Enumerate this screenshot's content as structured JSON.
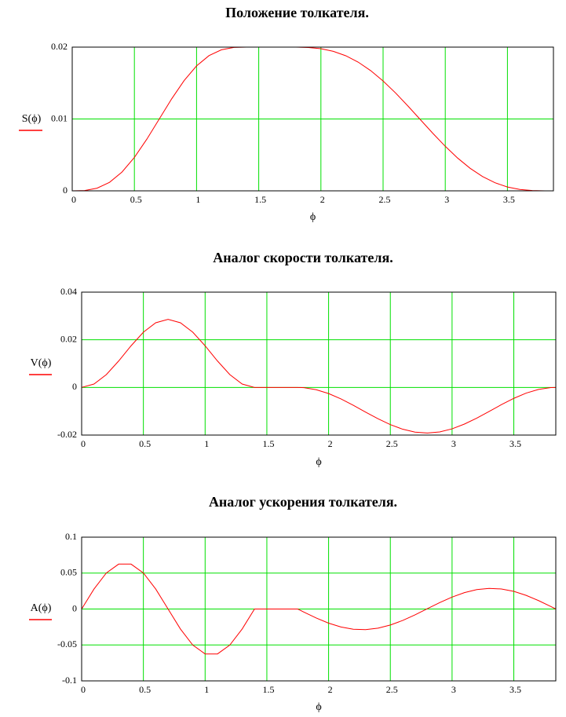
{
  "chart_data": [
    {
      "type": "line",
      "title": "Положение толкателя.",
      "x_label": "ϕ",
      "y_label": "S(ϕ)",
      "color": "#ff0000",
      "grid": true,
      "grid_color": "#00e000",
      "x": [
        0,
        0.1,
        0.2,
        0.3,
        0.4,
        0.5,
        0.6,
        0.7,
        0.8,
        0.9,
        1.0,
        1.1,
        1.2,
        1.3,
        1.4,
        1.5,
        1.6,
        1.7,
        1.75,
        1.8,
        1.9,
        2.0,
        2.1,
        2.2,
        2.3,
        2.4,
        2.5,
        2.6,
        2.7,
        2.8,
        2.9,
        3.0,
        3.1,
        3.2,
        3.3,
        3.4,
        3.5,
        3.6,
        3.7,
        3.8,
        3.84
      ],
      "values": [
        0,
        4.75e-05,
        0.000369,
        0.001182,
        0.002611,
        0.004654,
        0.00719,
        0.01,
        0.01281,
        0.015346,
        0.017389,
        0.018818,
        0.019631,
        0.019953,
        0.02,
        0.02,
        0.02,
        0.02,
        0.02,
        0.019998,
        0.019952,
        0.019781,
        0.019415,
        0.018801,
        0.017909,
        0.016732,
        0.01529,
        0.013627,
        0.011806,
        0.009904,
        0.008007,
        0.006198,
        0.004555,
        0.003137,
        0.001989,
        0.001124,
        0.000537,
        0.000194,
        3.92e-05,
        1e-06,
        0
      ],
      "xlim": [
        0,
        3.87
      ],
      "xticks": [
        0,
        0.5,
        1,
        1.5,
        2,
        2.5,
        3,
        3.5
      ],
      "ylim": [
        0,
        0.02
      ],
      "yticks": [
        0,
        0.01,
        0.02
      ]
    },
    {
      "type": "line",
      "title": "Аналог скорости толкателя.",
      "x_label": "ϕ",
      "y_label": "V(ϕ)",
      "color": "#ff0000",
      "grid": true,
      "grid_color": "#00e000",
      "x": [
        0,
        0.1,
        0.2,
        0.3,
        0.4,
        0.5,
        0.6,
        0.7,
        0.8,
        0.9,
        1.0,
        1.1,
        1.2,
        1.3,
        1.4,
        1.5,
        1.6,
        1.7,
        1.75,
        1.8,
        1.9,
        2.0,
        2.1,
        2.2,
        2.3,
        2.4,
        2.5,
        2.6,
        2.7,
        2.8,
        2.9,
        3.0,
        3.1,
        3.2,
        3.3,
        3.4,
        3.5,
        3.6,
        3.7,
        3.8,
        3.84
      ],
      "values": [
        0,
        0.001415,
        0.005379,
        0.011107,
        0.017465,
        0.023193,
        0.027157,
        0.028571,
        0.027157,
        0.023193,
        0.017465,
        0.011107,
        0.005379,
        0.001415,
        0,
        0,
        0,
        0,
        0,
        -0.000108,
        -0.000957,
        -0.002578,
        -0.004823,
        -0.007495,
        -0.01036,
        -0.013149,
        -0.015617,
        -0.017541,
        -0.018751,
        -0.019138,
        -0.018666,
        -0.017378,
        -0.015389,
        -0.012877,
        -0.010073,
        -0.007222,
        -0.00458,
        -0.002384,
        -0.000835,
        -6.9e-05,
        0
      ],
      "xlim": [
        0,
        3.84
      ],
      "xticks": [
        0,
        0.5,
        1,
        1.5,
        2,
        2.5,
        3,
        3.5
      ],
      "ylim": [
        -0.02,
        0.04
      ],
      "yticks": [
        -0.02,
        0,
        0.02,
        0.04
      ]
    },
    {
      "type": "line",
      "title": "Аналог ускорения толкателя.",
      "x_label": "ϕ",
      "y_label": "A(ϕ)",
      "color": "#ff0000",
      "grid": true,
      "grid_color": "#00e000",
      "x": [
        0,
        0.1,
        0.2,
        0.3,
        0.4,
        0.5,
        0.6,
        0.7,
        0.8,
        0.9,
        1.0,
        1.1,
        1.2,
        1.3,
        1.4,
        1.5,
        1.6,
        1.7,
        1.75,
        1.8,
        1.9,
        2.0,
        2.1,
        2.2,
        2.3,
        2.4,
        2.5,
        2.6,
        2.7,
        2.8,
        2.9,
        3.0,
        3.1,
        3.2,
        3.3,
        3.4,
        3.5,
        3.6,
        3.7,
        3.8,
        3.84
      ],
      "values": [
        0,
        0.027818,
        0.050126,
        0.062506,
        0.062506,
        0.050126,
        0.027818,
        0,
        -0.027818,
        -0.050126,
        -0.062506,
        -0.062506,
        -0.050126,
        -0.027818,
        0,
        0,
        0,
        0,
        0,
        -0.004308,
        -0.012538,
        -0.019643,
        -0.02498,
        -0.028084,
        -0.02867,
        -0.026679,
        -0.022297,
        -0.015915,
        -0.008105,
        0.000432,
        0.008931,
        0.016629,
        0.022837,
        0.026995,
        0.02873,
        0.027894,
        0.024548,
        0.019001,
        0.011754,
        0.003451,
        0
      ],
      "xlim": [
        0,
        3.84
      ],
      "xticks": [
        0,
        0.5,
        1,
        1.5,
        2,
        2.5,
        3,
        3.5
      ],
      "ylim": [
        -0.1,
        0.1
      ],
      "yticks": [
        -0.1,
        -0.05,
        0,
        0.05,
        0.1
      ]
    }
  ]
}
